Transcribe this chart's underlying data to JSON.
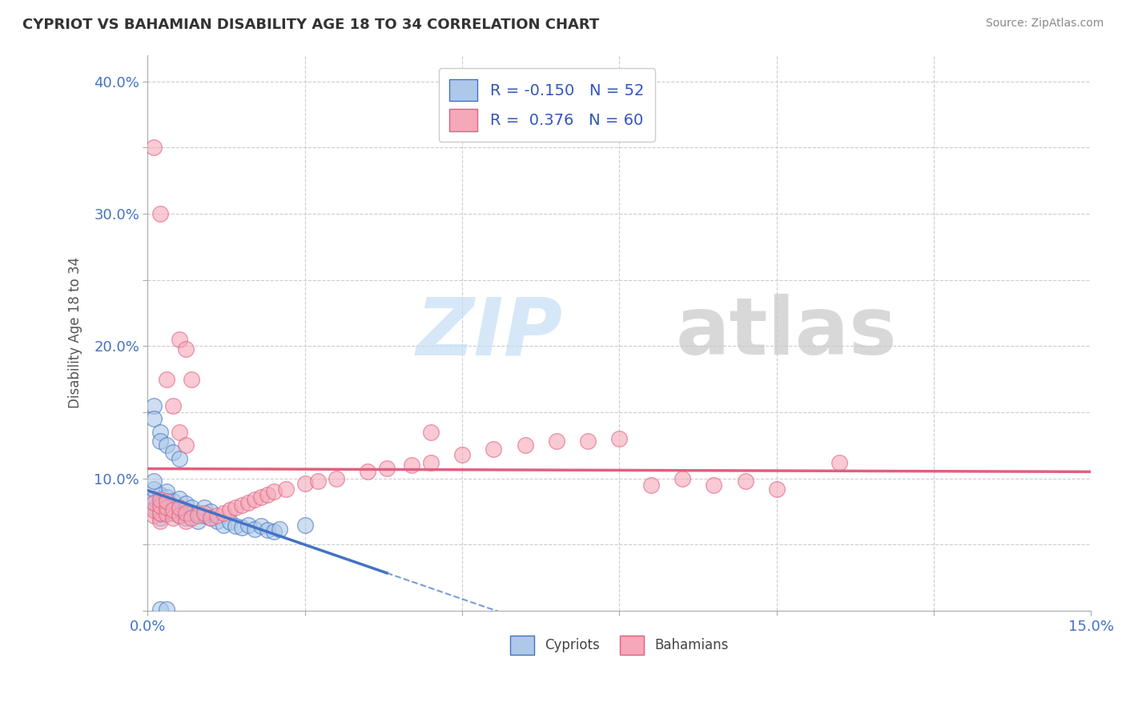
{
  "title": "CYPRIOT VS BAHAMIAN DISABILITY AGE 18 TO 34 CORRELATION CHART",
  "source": "Source: ZipAtlas.com",
  "ylabel": "Disability Age 18 to 34",
  "xlim": [
    0.0,
    0.15
  ],
  "ylim": [
    0.0,
    0.42
  ],
  "xticks": [
    0.0,
    0.025,
    0.05,
    0.075,
    0.1,
    0.125,
    0.15
  ],
  "xticklabels": [
    "0.0%",
    "",
    "",
    "",
    "",
    "",
    "15.0%"
  ],
  "yticks": [
    0.0,
    0.05,
    0.1,
    0.15,
    0.2,
    0.25,
    0.3,
    0.35,
    0.4
  ],
  "yticklabels": [
    "",
    "",
    "10.0%",
    "",
    "20.0%",
    "",
    "30.0%",
    "",
    "40.0%"
  ],
  "legend_cypriot_R": "-0.150",
  "legend_cypriot_N": "52",
  "legend_bahamian_R": "0.376",
  "legend_bahamian_N": "60",
  "cypriot_color": "#adc8e8",
  "bahamian_color": "#f5a8b8",
  "trend_cypriot_color": "#4472c4",
  "trend_bahamian_color": "#e06080",
  "background_color": "#ffffff",
  "grid_color": "#cccccc",
  "cypriot_x": [
    0.001,
    0.001,
    0.001,
    0.002,
    0.002,
    0.002,
    0.002,
    0.002,
    0.003,
    0.003,
    0.003,
    0.003,
    0.004,
    0.004,
    0.004,
    0.005,
    0.005,
    0.005,
    0.006,
    0.006,
    0.006,
    0.007,
    0.007,
    0.008,
    0.008,
    0.009,
    0.009,
    0.01,
    0.01,
    0.011,
    0.012,
    0.013,
    0.014,
    0.015,
    0.016,
    0.017,
    0.018,
    0.019,
    0.02,
    0.021,
    0.001,
    0.001,
    0.002,
    0.002,
    0.003,
    0.004,
    0.005,
    0.001,
    0.001,
    0.025,
    0.002,
    0.003
  ],
  "cypriot_y": [
    0.078,
    0.082,
    0.085,
    0.07,
    0.073,
    0.076,
    0.08,
    0.088,
    0.075,
    0.082,
    0.086,
    0.09,
    0.074,
    0.079,
    0.083,
    0.072,
    0.077,
    0.085,
    0.07,
    0.076,
    0.081,
    0.073,
    0.078,
    0.068,
    0.074,
    0.072,
    0.078,
    0.07,
    0.075,
    0.068,
    0.065,
    0.067,
    0.064,
    0.063,
    0.065,
    0.062,
    0.064,
    0.061,
    0.06,
    0.062,
    0.155,
    0.145,
    0.135,
    0.128,
    0.125,
    0.12,
    0.115,
    0.092,
    0.098,
    0.065,
    0.001,
    0.001
  ],
  "bahamian_x": [
    0.001,
    0.001,
    0.001,
    0.002,
    0.002,
    0.002,
    0.002,
    0.003,
    0.003,
    0.003,
    0.004,
    0.004,
    0.005,
    0.005,
    0.006,
    0.006,
    0.007,
    0.008,
    0.009,
    0.01,
    0.011,
    0.012,
    0.013,
    0.014,
    0.015,
    0.016,
    0.017,
    0.018,
    0.019,
    0.02,
    0.022,
    0.025,
    0.027,
    0.03,
    0.035,
    0.038,
    0.042,
    0.045,
    0.05,
    0.055,
    0.06,
    0.065,
    0.07,
    0.075,
    0.08,
    0.085,
    0.09,
    0.095,
    0.1,
    0.11,
    0.003,
    0.004,
    0.005,
    0.006,
    0.005,
    0.006,
    0.007,
    0.045,
    0.001,
    0.002
  ],
  "bahamian_y": [
    0.072,
    0.076,
    0.082,
    0.068,
    0.074,
    0.079,
    0.084,
    0.073,
    0.078,
    0.083,
    0.07,
    0.076,
    0.072,
    0.078,
    0.068,
    0.074,
    0.07,
    0.072,
    0.074,
    0.07,
    0.072,
    0.074,
    0.076,
    0.078,
    0.08,
    0.082,
    0.084,
    0.086,
    0.088,
    0.09,
    0.092,
    0.096,
    0.098,
    0.1,
    0.105,
    0.108,
    0.11,
    0.112,
    0.118,
    0.122,
    0.125,
    0.128,
    0.128,
    0.13,
    0.095,
    0.1,
    0.095,
    0.098,
    0.092,
    0.112,
    0.175,
    0.155,
    0.135,
    0.125,
    0.205,
    0.198,
    0.175,
    0.135,
    0.35,
    0.3
  ]
}
